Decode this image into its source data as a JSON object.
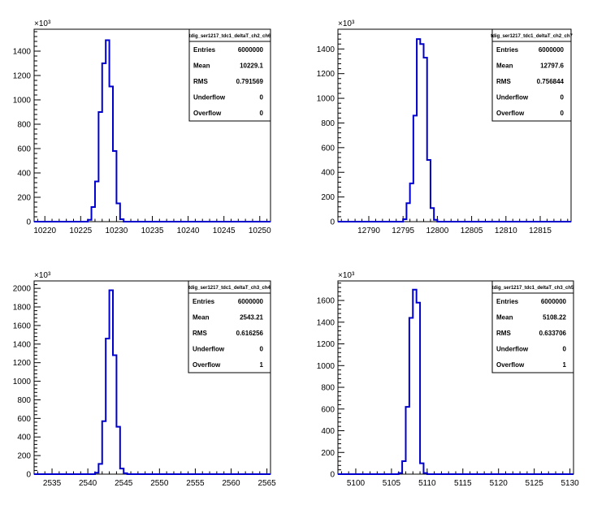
{
  "chart_data": [
    {
      "type": "bar",
      "title": "tdig_ser1217_tdc1_deltaT_ch2_ch6",
      "y_multiplier_label": "×10³",
      "xlim": [
        10218.5,
        10251.5
      ],
      "ylim": [
        0,
        1580
      ],
      "x_ticks": [
        10220,
        10225,
        10230,
        10235,
        10240,
        10245,
        10250
      ],
      "y_ticks": [
        0,
        200,
        400,
        600,
        800,
        1000,
        1200,
        1400
      ],
      "bin_width": 0.5,
      "bins": [
        {
          "x": 10226.0,
          "y": 15
        },
        {
          "x": 10226.5,
          "y": 120
        },
        {
          "x": 10227.0,
          "y": 330
        },
        {
          "x": 10227.5,
          "y": 900
        },
        {
          "x": 10228.0,
          "y": 1300
        },
        {
          "x": 10228.5,
          "y": 1490
        },
        {
          "x": 10229.0,
          "y": 1110
        },
        {
          "x": 10229.5,
          "y": 580
        },
        {
          "x": 10230.0,
          "y": 150
        },
        {
          "x": 10230.5,
          "y": 20
        }
      ],
      "stats": [
        {
          "label": "Entries",
          "value": "6000000"
        },
        {
          "label": "Mean",
          "value": "10229.1"
        },
        {
          "label": "RMS",
          "value": "0.791569"
        },
        {
          "label": "Underflow",
          "value": "0"
        },
        {
          "label": "Overflow",
          "value": "0"
        }
      ],
      "color": "#0000cc"
    },
    {
      "type": "bar",
      "title": "tdig_ser1217_tdc1_deltaT_ch2_ch7",
      "y_multiplier_label": "×10³",
      "xlim": [
        12785.5,
        12819.5
      ],
      "ylim": [
        0,
        1560
      ],
      "x_ticks": [
        12790,
        12795,
        12800,
        12805,
        12810,
        12815
      ],
      "y_ticks": [
        0,
        200,
        400,
        600,
        800,
        1000,
        1200,
        1400
      ],
      "bin_width": 0.5,
      "bins": [
        {
          "x": 12795.0,
          "y": 20
        },
        {
          "x": 12795.5,
          "y": 150
        },
        {
          "x": 12796.0,
          "y": 310
        },
        {
          "x": 12796.5,
          "y": 860
        },
        {
          "x": 12797.0,
          "y": 1480
        },
        {
          "x": 12797.5,
          "y": 1440
        },
        {
          "x": 12798.0,
          "y": 1330
        },
        {
          "x": 12798.5,
          "y": 500
        },
        {
          "x": 12799.0,
          "y": 110
        },
        {
          "x": 12799.5,
          "y": 15
        }
      ],
      "stats": [
        {
          "label": "Entries",
          "value": "6000000"
        },
        {
          "label": "Mean",
          "value": "12797.6"
        },
        {
          "label": "RMS",
          "value": "0.756844"
        },
        {
          "label": "Underflow",
          "value": "0"
        },
        {
          "label": "Overflow",
          "value": "0"
        }
      ],
      "color": "#0000cc"
    },
    {
      "type": "bar",
      "title": "tdig_ser1217_tdc1_deltaT_ch3_ch4",
      "y_multiplier_label": "×10³",
      "xlim": [
        2532.5,
        2565.5
      ],
      "ylim": [
        0,
        2080
      ],
      "x_ticks": [
        2535,
        2540,
        2545,
        2550,
        2555,
        2560,
        2565
      ],
      "y_ticks": [
        0,
        200,
        400,
        600,
        800,
        1000,
        1200,
        1400,
        1600,
        1800,
        2000
      ],
      "bin_width": 0.5,
      "bins": [
        {
          "x": 2541.0,
          "y": 15
        },
        {
          "x": 2541.5,
          "y": 110
        },
        {
          "x": 2542.0,
          "y": 570
        },
        {
          "x": 2542.5,
          "y": 1460
        },
        {
          "x": 2543.0,
          "y": 1980
        },
        {
          "x": 2543.5,
          "y": 1280
        },
        {
          "x": 2544.0,
          "y": 510
        },
        {
          "x": 2544.5,
          "y": 60
        },
        {
          "x": 2545.0,
          "y": 10
        }
      ],
      "stats": [
        {
          "label": "Entries",
          "value": "6000000"
        },
        {
          "label": "Mean",
          "value": "2543.21"
        },
        {
          "label": "RMS",
          "value": "0.616256"
        },
        {
          "label": "Underflow",
          "value": "0"
        },
        {
          "label": "Overflow",
          "value": "1"
        }
      ],
      "color": "#0000cc"
    },
    {
      "type": "bar",
      "title": "tdig_ser1217_tdc1_deltaT_ch3_ch5",
      "y_multiplier_label": "×10³",
      "xlim": [
        5097.5,
        5130.5
      ],
      "ylim": [
        0,
        1780
      ],
      "x_ticks": [
        5100,
        5105,
        5110,
        5115,
        5120,
        5125,
        5130
      ],
      "y_ticks": [
        0,
        200,
        400,
        600,
        800,
        1000,
        1200,
        1400,
        1600
      ],
      "bin_width": 0.5,
      "bins": [
        {
          "x": 5106.0,
          "y": 10
        },
        {
          "x": 5106.5,
          "y": 120
        },
        {
          "x": 5107.0,
          "y": 620
        },
        {
          "x": 5107.5,
          "y": 1440
        },
        {
          "x": 5108.0,
          "y": 1700
        },
        {
          "x": 5108.5,
          "y": 1580
        },
        {
          "x": 5109.0,
          "y": 100
        },
        {
          "x": 5109.5,
          "y": 10
        }
      ],
      "stats": [
        {
          "label": "Entries",
          "value": "6000000"
        },
        {
          "label": "Mean",
          "value": "5108.22"
        },
        {
          "label": "RMS",
          "value": "0.633706"
        },
        {
          "label": "Underflow",
          "value": "0"
        },
        {
          "label": "Overflow",
          "value": "1"
        }
      ],
      "color": "#0000cc"
    }
  ]
}
